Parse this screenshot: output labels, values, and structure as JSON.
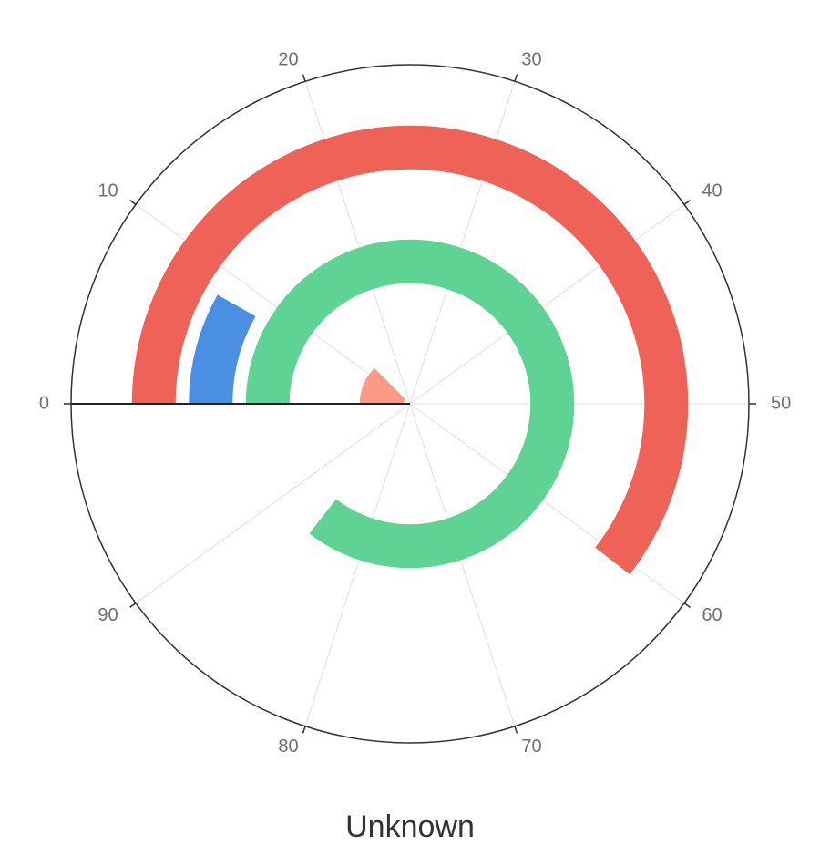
{
  "chart_data": {
    "type": "bar",
    "subtype": "polar-radial-bar",
    "title": "Unknown",
    "angle_axis": {
      "min": 0,
      "max": 100,
      "start": "left",
      "direction": "clockwise",
      "ticks": [
        0,
        10,
        20,
        30,
        40,
        50,
        60,
        70,
        80,
        90
      ],
      "tick_labels": [
        "0",
        "10",
        "20",
        "30",
        "40",
        "50",
        "60",
        "70",
        "80",
        "90"
      ]
    },
    "grid": true,
    "legend": "none",
    "bars": [
      {
        "ring": 1,
        "start": 0,
        "value": 12.5,
        "color": "#fc9a86"
      },
      {
        "ring": 3,
        "start": 0,
        "value": 85.5,
        "color": "#5fd394"
      },
      {
        "ring": 4,
        "start": 0,
        "value": 8.2,
        "color": "#4a8fe2"
      },
      {
        "ring": 5,
        "start": 0,
        "value": 60.5,
        "color": "#ee6257"
      }
    ]
  }
}
